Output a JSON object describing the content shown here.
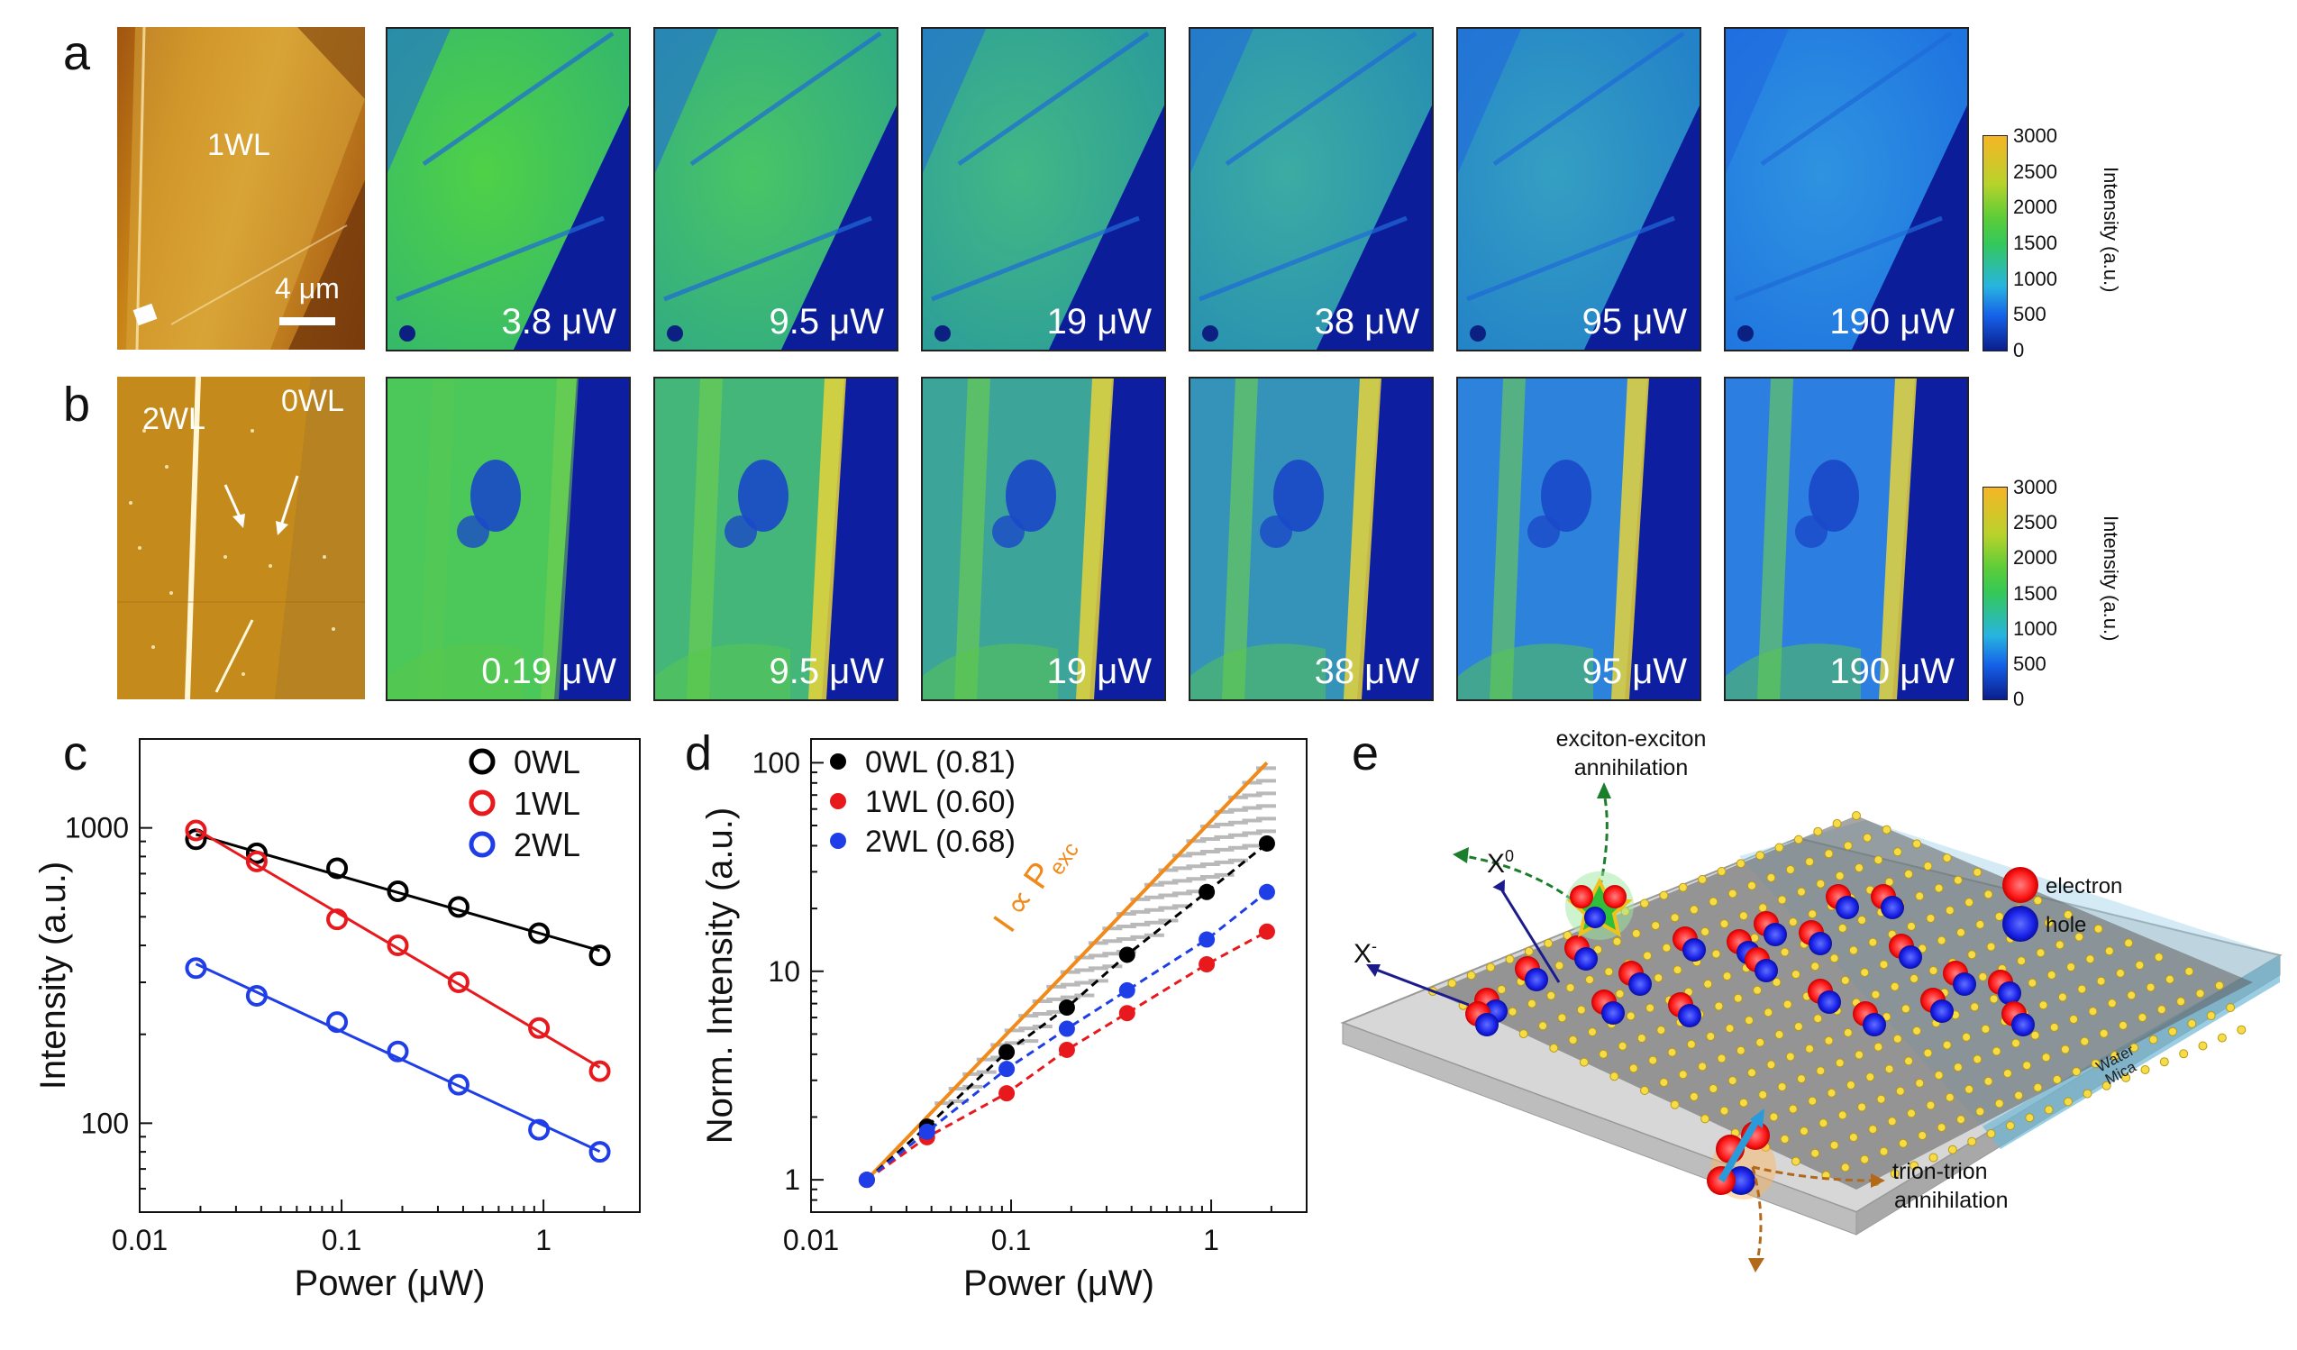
{
  "panel_labels": {
    "a": "a",
    "b": "b",
    "c": "c",
    "d": "d",
    "e": "e"
  },
  "row_a": {
    "afm_label": "1WL",
    "scale_bar": "4 μm",
    "powers": [
      "3.8 μW",
      "9.5 μW",
      "19 μW",
      "38 μW",
      "95 μW",
      "190 μW"
    ]
  },
  "row_b": {
    "afm_label_2wl": "2WL",
    "afm_label_0wl": "0WL",
    "powers": [
      "0.19 μW",
      "9.5 μW",
      "19 μW",
      "38 μW",
      "95 μW",
      "190 μW"
    ]
  },
  "colorbar": {
    "ticks": [
      "3000",
      "2500",
      "2000",
      "1500",
      "1000",
      "500",
      "0"
    ],
    "title": "Intensity (a.u.)",
    "low_color": "#0a1e8c",
    "high_color": "#f6b526"
  },
  "chart_data": [
    {
      "type": "scatter",
      "panel": "c",
      "xlabel": "Power (μW)",
      "ylabel": "Intensity (a.u.)",
      "xscale": "log",
      "yscale": "log",
      "xlim": [
        0.01,
        3
      ],
      "ylim": [
        50,
        2000
      ],
      "xticks": [
        "0.01",
        "0.1",
        "1"
      ],
      "yticks": [
        "100",
        "1000"
      ],
      "legend_position": "top-right",
      "series": [
        {
          "name": "0WL",
          "color": "#000000",
          "x": [
            0.019,
            0.038,
            0.095,
            0.19,
            0.38,
            0.95,
            1.9
          ],
          "y": [
            915,
            820,
            730,
            610,
            540,
            440,
            370
          ]
        },
        {
          "name": "1WL",
          "color": "#e8191d",
          "x": [
            0.019,
            0.038,
            0.095,
            0.19,
            0.38,
            0.95,
            1.9
          ],
          "y": [
            980,
            770,
            490,
            400,
            300,
            210,
            150
          ]
        },
        {
          "name": "2WL",
          "color": "#1f3ee8",
          "x": [
            0.019,
            0.038,
            0.095,
            0.19,
            0.38,
            0.95,
            1.9
          ],
          "y": [
            335,
            270,
            220,
            175,
            135,
            95,
            80
          ]
        }
      ]
    },
    {
      "type": "scatter",
      "panel": "d",
      "xlabel": "Power (μW)",
      "ylabel": "Norm. Intensity (a.u.)",
      "xscale": "log",
      "yscale": "log",
      "xlim": [
        0.01,
        3
      ],
      "ylim": [
        0.7,
        130
      ],
      "xticks": [
        "0.01",
        "0.1",
        "1"
      ],
      "yticks": [
        "1",
        "10",
        "100"
      ],
      "legend_position": "top-left",
      "series": [
        {
          "name": "0WL (0.81)",
          "color": "#000000",
          "x": [
            0.019,
            0.038,
            0.095,
            0.19,
            0.38,
            0.95,
            1.9
          ],
          "y": [
            1,
            1.8,
            4.1,
            6.7,
            12,
            24,
            41
          ]
        },
        {
          "name": "1WL (0.60)",
          "color": "#e8191d",
          "x": [
            0.019,
            0.038,
            0.095,
            0.19,
            0.38,
            0.95,
            1.9
          ],
          "y": [
            1,
            1.6,
            2.6,
            4.2,
            6.3,
            10.8,
            15.5
          ]
        },
        {
          "name": "2WL (0.68)",
          "color": "#1f3ee8",
          "x": [
            0.019,
            0.038,
            0.095,
            0.19,
            0.38,
            0.95,
            1.9
          ],
          "y": [
            1,
            1.7,
            3.4,
            5.3,
            8.1,
            14.2,
            24
          ]
        }
      ],
      "reference_line": {
        "label": "I ∝ P",
        "subscript": "exc",
        "color": "#f08a1a",
        "x": [
          0.019,
          1.9
        ],
        "y": [
          1,
          100
        ]
      }
    }
  ],
  "diagram_e": {
    "title_annihilation_ee": "exciton-exciton",
    "title_annihilation_ee2": "annihilation",
    "x0": "X",
    "x0_sup": "0",
    "xminus": "X",
    "xminus_sup": "-",
    "legend_electron": "electron",
    "legend_hole": "hole",
    "trion_1": "trion-trion",
    "trion_2": "annihilation",
    "water": "Water",
    "mica": "Mica",
    "electron_color": "#ff1a1a",
    "hole_color": "#1a22e8"
  }
}
